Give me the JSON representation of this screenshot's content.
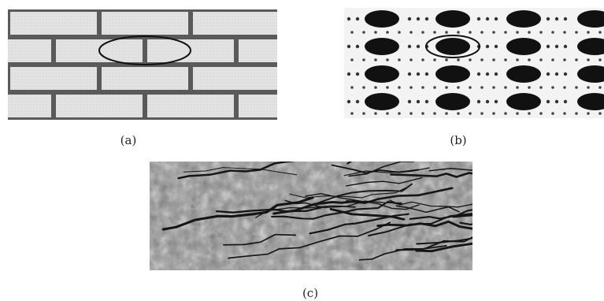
{
  "figure": {
    "panels": [
      {
        "label": "(a)",
        "content": "brick-wall-texture"
      },
      {
        "label": "(b)",
        "content": "dot-lattice-texture"
      },
      {
        "label": "(c)",
        "content": "cracked-surface-texture"
      }
    ],
    "colors": {
      "mortar": "#5a5a5a",
      "brick": "#e6e6e6",
      "dot": "#111111",
      "lattice_bg": "#f3f3f3",
      "crack_surface": "#8c8c8c"
    }
  }
}
